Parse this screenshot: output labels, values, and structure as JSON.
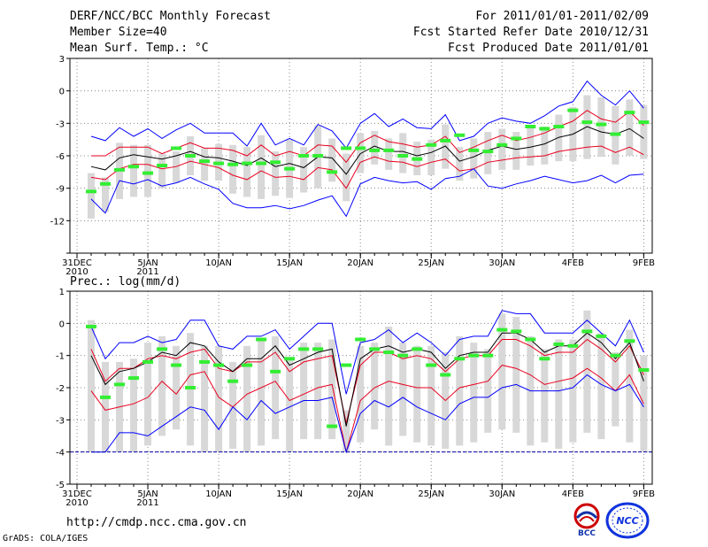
{
  "header": {
    "title": "DERF/NCC/BCC Monthly Forecast",
    "member_size": "Member Size=40",
    "variable": "Mean Surf. Temp.: °C",
    "forecast_period": "For 2011/01/01-2011/02/09",
    "start_date": "Fcst Started Refer Date 2010/12/31",
    "produced_date": "Fcst Produced Date 2011/01/01"
  },
  "footer": {
    "url": "http://cmdp.ncc.cma.gov.cn",
    "credit": "GrADS: COLA/IGES"
  },
  "logos": {
    "bcc_text": "BCC",
    "ncc_text": "NCC"
  },
  "colors": {
    "envelope": "#0000ff",
    "spread": "#e8001e",
    "ensemble_mean": "#000000",
    "observation": "#33ee33",
    "box": "#d8d8d8",
    "grid": "#888888"
  },
  "chart_data": [
    {
      "type": "line",
      "title": "Mean Surf. Temp.: °C",
      "x_tick_labels": [
        {
          "day": 1,
          "label": "31DEC",
          "sub": "2010"
        },
        {
          "day": 6,
          "label": "5JAN",
          "sub": "2011"
        },
        {
          "day": 11,
          "label": "10JAN",
          "sub": ""
        },
        {
          "day": 16,
          "label": "15JAN",
          "sub": ""
        },
        {
          "day": 21,
          "label": "20JAN",
          "sub": ""
        },
        {
          "day": 26,
          "label": "25JAN",
          "sub": ""
        },
        {
          "day": 31,
          "label": "30JAN",
          "sub": ""
        },
        {
          "day": 36,
          "label": "4FEB",
          "sub": ""
        },
        {
          "day": 41,
          "label": "9FEB",
          "sub": ""
        }
      ],
      "xlim": [
        0.5,
        41.6
      ],
      "ylim": [
        -15,
        3
      ],
      "y_ticks": [
        3,
        0,
        -3,
        -6,
        -9,
        -12,
        -15
      ],
      "y_tick_labels": [
        "3",
        "0",
        "-3",
        "-6",
        "-9",
        "-12",
        ""
      ],
      "grid": true,
      "x": [
        2,
        3,
        4,
        5,
        6,
        7,
        8,
        9,
        10,
        11,
        12,
        13,
        14,
        15,
        16,
        17,
        18,
        19,
        20,
        21,
        22,
        23,
        24,
        25,
        26,
        27,
        28,
        29,
        30,
        31,
        32,
        33,
        34,
        35,
        36,
        37,
        38,
        39,
        40,
        41
      ],
      "series": [
        {
          "name": "max",
          "values": [
            -4.2,
            -4.6,
            -3.4,
            -4.2,
            -3.5,
            -4.4,
            -3.6,
            -3.0,
            -3.9,
            -3.9,
            -3.9,
            -5.1,
            -3.0,
            -5.0,
            -4.4,
            -5.0,
            -3.1,
            -3.7,
            -5.3,
            -3.0,
            -2.1,
            -3.3,
            -2.6,
            -3.4,
            -3.5,
            -2.2,
            -4.6,
            -4.2,
            -3.0,
            -2.5,
            -2.8,
            -3.0,
            -2.3,
            -1.4,
            -1.0,
            0.9,
            -0.4,
            -1.3,
            0.0,
            -1.6
          ]
        },
        {
          "name": "upper",
          "values": [
            -6.0,
            -6.0,
            -5.2,
            -5.2,
            -5.2,
            -5.8,
            -5.3,
            -4.8,
            -5.3,
            -5.3,
            -5.5,
            -6.0,
            -5.0,
            -6.0,
            -5.6,
            -6.0,
            -5.0,
            -5.1,
            -6.6,
            -4.8,
            -4.1,
            -4.7,
            -4.9,
            -5.2,
            -5.0,
            -4.2,
            -5.7,
            -5.2,
            -4.6,
            -4.1,
            -4.6,
            -4.3,
            -3.9,
            -3.3,
            -2.8,
            -1.8,
            -2.6,
            -2.9,
            -1.9,
            -3.2
          ]
        },
        {
          "name": "mean",
          "values": [
            -7.0,
            -7.3,
            -6.2,
            -5.9,
            -6.1,
            -6.3,
            -6.0,
            -5.6,
            -6.1,
            -6.2,
            -6.5,
            -6.9,
            -6.2,
            -7.0,
            -6.7,
            -7.1,
            -6.1,
            -6.2,
            -7.7,
            -5.8,
            -5.1,
            -5.6,
            -5.6,
            -6.0,
            -5.7,
            -5.1,
            -6.5,
            -6.1,
            -5.5,
            -5.1,
            -5.4,
            -5.2,
            -4.9,
            -4.3,
            -4.0,
            -3.3,
            -3.8,
            -4.0,
            -3.5,
            -4.4
          ]
        },
        {
          "name": "lower",
          "values": [
            -8.0,
            -8.2,
            -7.2,
            -6.8,
            -6.8,
            -7.2,
            -7.0,
            -6.5,
            -6.8,
            -7.1,
            -7.8,
            -8.2,
            -7.4,
            -8.0,
            -7.9,
            -8.2,
            -7.1,
            -7.3,
            -9.0,
            -6.6,
            -6.1,
            -6.5,
            -6.6,
            -7.0,
            -6.6,
            -6.3,
            -7.4,
            -7.2,
            -6.6,
            -6.4,
            -6.2,
            -6.1,
            -6.0,
            -5.6,
            -5.4,
            -5.2,
            -5.1,
            -5.7,
            -5.2,
            -5.9
          ]
        },
        {
          "name": "min",
          "values": [
            -10.0,
            -11.3,
            -8.3,
            -8.6,
            -8.2,
            -8.8,
            -8.5,
            -8.0,
            -8.6,
            -9.1,
            -10.4,
            -10.8,
            -10.8,
            -10.6,
            -10.9,
            -10.6,
            -10.1,
            -9.7,
            -11.6,
            -8.6,
            -8.0,
            -8.3,
            -8.5,
            -8.4,
            -9.1,
            -8.1,
            -7.9,
            -7.2,
            -8.8,
            -9.0,
            -8.6,
            -8.3,
            -7.9,
            -8.2,
            -8.5,
            -8.3,
            -7.8,
            -8.5,
            -7.8,
            -7.7
          ]
        }
      ],
      "boxes_low": [
        -11.8,
        -11.2,
        -10.0,
        -9.8,
        -9.8,
        -9.0,
        -8.5,
        -7.8,
        -8.3,
        -8.3,
        -9.5,
        -9.8,
        -10.0,
        -9.7,
        -9.9,
        -9.4,
        -9.0,
        -8.4,
        -10.2,
        -7.6,
        -6.8,
        -7.3,
        -7.6,
        -7.8,
        -7.8,
        -7.2,
        -8.3,
        -8.1,
        -7.7,
        -7.3,
        -7.3,
        -6.9,
        -6.8,
        -6.5,
        -6.5,
        -6.3,
        -6.1,
        -6.8,
        -6.0,
        -6.3
      ],
      "boxes_high": [
        -7.6,
        -8.0,
        -4.8,
        -5.0,
        -5.0,
        -5.8,
        -5.6,
        -4.2,
        -5.3,
        -4.9,
        -5.0,
        -5.2,
        -4.1,
        -5.6,
        -4.5,
        -5.2,
        -3.2,
        -4.4,
        -5.8,
        -3.9,
        -3.7,
        -4.4,
        -3.9,
        -4.7,
        -4.5,
        -3.1,
        -5.2,
        -4.4,
        -3.8,
        -3.5,
        -3.8,
        -3.3,
        -3.3,
        -2.2,
        -1.5,
        -0.4,
        -0.6,
        -1.4,
        -0.8,
        -1.3
      ],
      "observation": [
        -9.3,
        -8.6,
        -7.3,
        -7.0,
        -7.6,
        -6.9,
        -5.3,
        -6.0,
        -6.5,
        -6.7,
        -6.8,
        -6.7,
        -6.7,
        -6.6,
        -7.2,
        -6.0,
        -6.0,
        -7.5,
        -5.3,
        -5.3,
        -5.5,
        -5.5,
        -6.0,
        -6.3,
        -5.0,
        -4.6,
        -4.1,
        -5.5,
        -5.6,
        -5.0,
        -4.4,
        -3.3,
        -3.5,
        -3.3,
        -1.8,
        -2.9,
        -3.1,
        -4.0,
        -2.0,
        -2.9
      ]
    },
    {
      "type": "line",
      "title": "Prec.: log(mm/d)",
      "x_tick_labels": [
        {
          "day": 1,
          "label": "31DEC",
          "sub": "2010"
        },
        {
          "day": 6,
          "label": "5JAN",
          "sub": "2011"
        },
        {
          "day": 11,
          "label": "10JAN",
          "sub": ""
        },
        {
          "day": 16,
          "label": "15JAN",
          "sub": ""
        },
        {
          "day": 21,
          "label": "20JAN",
          "sub": ""
        },
        {
          "day": 26,
          "label": "25JAN",
          "sub": ""
        },
        {
          "day": 31,
          "label": "30JAN",
          "sub": ""
        },
        {
          "day": 36,
          "label": "4FEB",
          "sub": ""
        },
        {
          "day": 41,
          "label": "9FEB",
          "sub": ""
        }
      ],
      "xlim": [
        0.5,
        41.6
      ],
      "ylim": [
        -5,
        1
      ],
      "y_ticks": [
        1,
        0,
        -1,
        -2,
        -3,
        -4,
        -5
      ],
      "y_tick_labels": [
        "1",
        "0",
        "-1",
        "-2",
        "-3",
        "-4",
        "-5"
      ],
      "grid": true,
      "x": [
        2,
        3,
        4,
        5,
        6,
        7,
        8,
        9,
        10,
        11,
        12,
        13,
        14,
        15,
        16,
        17,
        18,
        19,
        20,
        21,
        22,
        23,
        24,
        25,
        26,
        27,
        28,
        29,
        30,
        31,
        32,
        33,
        34,
        35,
        36,
        37,
        38,
        39,
        40,
        41
      ],
      "series": [
        {
          "name": "max",
          "values": [
            -0.1,
            -1.1,
            -0.6,
            -0.6,
            -0.4,
            -0.6,
            -0.5,
            0.1,
            0.1,
            -0.7,
            -0.8,
            -0.4,
            -0.4,
            -0.2,
            -0.8,
            -0.4,
            0.0,
            0.0,
            -2.2,
            -0.6,
            -0.5,
            -0.2,
            -0.6,
            -0.3,
            -0.6,
            -1.0,
            -0.5,
            -0.4,
            -0.4,
            0.4,
            0.3,
            0.3,
            -0.3,
            -0.3,
            -0.3,
            0.1,
            -0.3,
            -0.7,
            0.1,
            -0.9
          ]
        },
        {
          "name": "upper",
          "values": [
            -0.8,
            -1.8,
            -1.4,
            -1.4,
            -1.1,
            -1.0,
            -1.1,
            -0.9,
            -0.8,
            -1.4,
            -1.5,
            -1.2,
            -1.2,
            -0.9,
            -1.5,
            -1.2,
            -1.1,
            -1.0,
            -3.1,
            -1.3,
            -0.9,
            -0.9,
            -1.1,
            -1.0,
            -1.1,
            -1.5,
            -1.1,
            -1.0,
            -1.0,
            -0.5,
            -0.5,
            -0.7,
            -1.0,
            -0.9,
            -0.9,
            -0.5,
            -0.8,
            -1.2,
            -0.7,
            -1.6
          ]
        },
        {
          "name": "mean",
          "values": [
            -1.0,
            -1.9,
            -1.5,
            -1.4,
            -1.2,
            -0.9,
            -1.0,
            -0.6,
            -0.7,
            -1.2,
            -1.5,
            -1.1,
            -1.1,
            -0.7,
            -1.3,
            -1.1,
            -0.9,
            -0.8,
            -3.2,
            -1.1,
            -0.8,
            -0.7,
            -0.9,
            -0.8,
            -0.9,
            -1.4,
            -1.0,
            -0.9,
            -0.9,
            -0.3,
            -0.3,
            -0.5,
            -0.9,
            -0.7,
            -0.7,
            -0.3,
            -0.6,
            -1.1,
            -0.6,
            -1.8
          ]
        },
        {
          "name": "lower",
          "values": [
            -2.1,
            -2.7,
            -2.6,
            -2.5,
            -2.3,
            -1.8,
            -2.2,
            -1.6,
            -1.5,
            -2.3,
            -2.6,
            -2.2,
            -2.0,
            -1.8,
            -2.4,
            -2.2,
            -2.0,
            -1.9,
            -4.0,
            -2.4,
            -2.0,
            -1.8,
            -1.9,
            -2.0,
            -2.0,
            -2.4,
            -2.0,
            -1.9,
            -1.8,
            -1.3,
            -1.4,
            -1.6,
            -1.9,
            -1.8,
            -1.7,
            -1.4,
            -1.7,
            -2.1,
            -1.6,
            -2.5
          ]
        },
        {
          "name": "min",
          "values": [
            -4.0,
            -4.0,
            -3.4,
            -3.4,
            -3.5,
            -3.2,
            -2.9,
            -2.6,
            -2.7,
            -3.3,
            -2.6,
            -3.0,
            -2.4,
            -2.8,
            -2.6,
            -2.4,
            -2.4,
            -2.3,
            -4.0,
            -2.8,
            -2.4,
            -2.6,
            -2.3,
            -2.6,
            -2.8,
            -3.0,
            -2.5,
            -2.3,
            -2.3,
            -2.0,
            -1.9,
            -2.1,
            -2.1,
            -2.1,
            -2.0,
            -1.6,
            -1.9,
            -2.1,
            -1.9,
            -2.6
          ]
        }
      ],
      "boxes_low": [
        -4.0,
        -4.0,
        -4.0,
        -4.0,
        -3.8,
        -3.5,
        -3.3,
        -3.8,
        -4.0,
        -4.0,
        -3.9,
        -4.0,
        -3.8,
        -3.6,
        -4.0,
        -3.6,
        -3.6,
        -3.6,
        -4.0,
        -3.7,
        -3.3,
        -3.8,
        -3.5,
        -3.7,
        -3.8,
        -3.9,
        -3.8,
        -3.7,
        -3.4,
        -3.3,
        -3.4,
        -3.8,
        -3.7,
        -3.9,
        -3.7,
        -3.4,
        -3.6,
        -3.2,
        -3.7,
        -4.0
      ],
      "boxes_high": [
        0.1,
        -1.2,
        -1.2,
        -1.1,
        -0.6,
        -0.4,
        -0.7,
        -0.3,
        -0.7,
        -0.7,
        -1.2,
        -0.7,
        -0.5,
        -0.4,
        -1.1,
        -0.6,
        -0.6,
        -0.5,
        -2.7,
        -0.7,
        -0.6,
        -0.1,
        -0.6,
        -0.7,
        -0.7,
        -0.9,
        -0.4,
        -0.6,
        -0.8,
        0.3,
        0.2,
        -0.4,
        -0.8,
        -0.5,
        -0.5,
        0.4,
        -0.3,
        -0.9,
        -0.2,
        -1.0
      ],
      "observation": [
        -0.1,
        -2.3,
        -1.9,
        -1.7,
        -1.2,
        -0.8,
        -1.3,
        -2.0,
        -1.2,
        -1.3,
        -1.8,
        -1.3,
        -0.5,
        -1.5,
        -1.1,
        -0.8,
        -0.8,
        -3.2,
        -1.3,
        -0.5,
        -0.8,
        -0.9,
        -1.0,
        -0.8,
        -1.3,
        -1.6,
        -1.1,
        -1.0,
        -1.0,
        -0.2,
        -0.25,
        -0.5,
        -1.1,
        -0.65,
        -0.7,
        -0.25,
        -0.4,
        -1.0,
        -0.55,
        -1.45
      ]
    }
  ]
}
